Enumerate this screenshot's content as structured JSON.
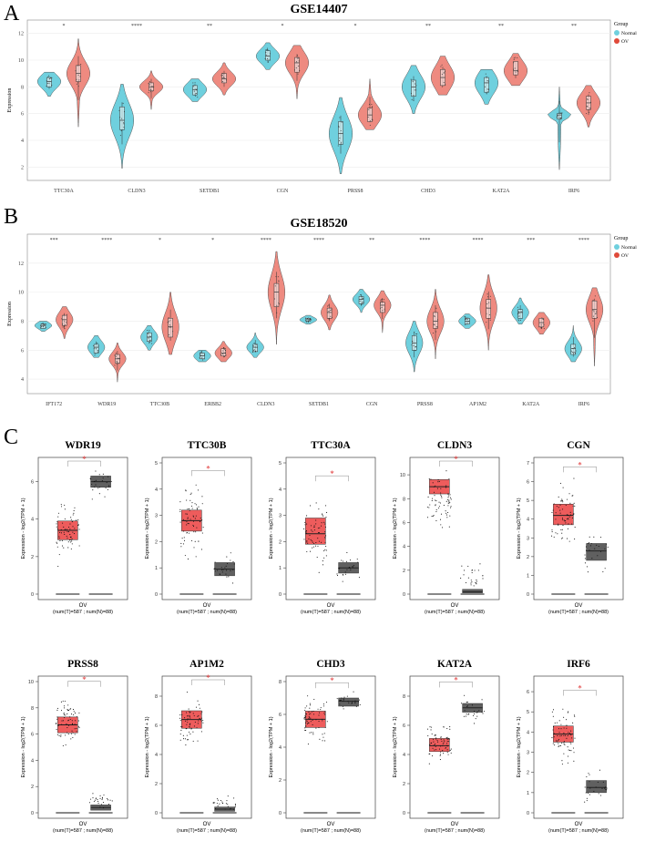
{
  "colors": {
    "normal": "#6fd0de",
    "ov": "#ee8a80",
    "box_tumor": "#ee5c5c",
    "box_normal": "#606060",
    "sig": "#e03030",
    "axis": "#333333"
  },
  "panels": {
    "A": "A",
    "B": "B",
    "C": "C"
  },
  "legend": {
    "title": "Group",
    "normal": "Normal",
    "ov": "OV"
  },
  "chart_data": [
    {
      "type": "violin",
      "panel": "A",
      "title": "GSE14407",
      "ylabel": "Expression",
      "ylim": [
        1,
        13
      ],
      "yticks": [
        2,
        4,
        6,
        8,
        10,
        12
      ],
      "categories": [
        "TTC30A",
        "CLDN3",
        "SETDB1",
        "CGN",
        "PRSS8",
        "CHD3",
        "KAT2A",
        "IRF6"
      ],
      "significance": [
        "*",
        "****",
        "**",
        "*",
        "*",
        "**",
        "**",
        "**"
      ],
      "series": [
        {
          "name": "Normal",
          "medians": [
            8.4,
            5.5,
            7.8,
            10.3,
            4.5,
            8.0,
            8.3,
            5.9
          ],
          "q1": [
            8.0,
            4.8,
            7.4,
            10.0,
            3.7,
            7.3,
            7.6,
            5.6
          ],
          "q3": [
            8.7,
            6.5,
            8.1,
            10.7,
            5.4,
            8.5,
            8.7,
            6.0
          ],
          "min": [
            7.3,
            1.9,
            6.9,
            9.3,
            1.5,
            6.0,
            6.7,
            1.8
          ],
          "max": [
            9.1,
            8.2,
            8.6,
            11.3,
            7.2,
            9.6,
            9.3,
            8.0
          ]
        },
        {
          "name": "OV",
          "medians": [
            9.0,
            8.0,
            8.6,
            9.8,
            5.9,
            8.7,
            9.2,
            6.8
          ],
          "q1": [
            8.4,
            7.7,
            8.3,
            9.1,
            5.4,
            8.1,
            8.9,
            6.3
          ],
          "q3": [
            9.6,
            8.3,
            9.0,
            10.2,
            6.4,
            9.3,
            9.9,
            7.3
          ],
          "min": [
            5.0,
            6.3,
            7.4,
            7.1,
            4.8,
            7.4,
            8.1,
            5.0
          ],
          "max": [
            11.6,
            9.2,
            9.8,
            11.1,
            8.6,
            10.3,
            10.5,
            8.1
          ]
        }
      ]
    },
    {
      "type": "violin",
      "panel": "B",
      "title": "GSE18520",
      "ylabel": "Expression",
      "ylim": [
        3,
        14
      ],
      "yticks": [
        4,
        6,
        8,
        10,
        12
      ],
      "categories": [
        "IFT172",
        "WDR19",
        "TTC30B",
        "ERBB2",
        "CLDN3",
        "SETDB1",
        "CGN",
        "PRSS8",
        "AP1M2",
        "KAT2A",
        "IRF6"
      ],
      "significance": [
        "***",
        "****",
        "*",
        "*",
        "****",
        "****",
        "**",
        "****",
        "****",
        "***",
        "****"
      ],
      "series": [
        {
          "name": "Normal",
          "medians": [
            7.7,
            6.2,
            6.9,
            5.6,
            6.2,
            8.1,
            9.5,
            6.5,
            8.0,
            8.6,
            6.1
          ],
          "q1": [
            7.5,
            5.8,
            6.6,
            5.4,
            5.9,
            8.0,
            9.2,
            6.0,
            7.8,
            8.2,
            5.7
          ],
          "q3": [
            7.8,
            6.4,
            7.2,
            5.8,
            6.4,
            8.2,
            9.7,
            7.0,
            8.2,
            8.8,
            6.4
          ],
          "min": [
            7.3,
            5.5,
            6.0,
            5.2,
            5.5,
            7.8,
            8.6,
            4.5,
            7.5,
            7.8,
            5.2
          ],
          "max": [
            8.0,
            7.0,
            7.7,
            6.0,
            7.2,
            8.4,
            10.2,
            8.0,
            8.5,
            9.6,
            7.7
          ]
        },
        {
          "name": "OV",
          "medians": [
            8.1,
            5.4,
            7.6,
            5.8,
            10.0,
            8.6,
            9.1,
            8.0,
            8.9,
            7.9,
            8.8
          ],
          "q1": [
            7.7,
            5.1,
            6.9,
            5.6,
            9.0,
            8.2,
            8.6,
            7.5,
            8.2,
            7.6,
            8.2
          ],
          "q3": [
            8.4,
            5.7,
            8.2,
            6.1,
            10.6,
            8.9,
            9.3,
            8.6,
            9.5,
            8.2,
            9.4
          ],
          "min": [
            6.8,
            3.8,
            5.7,
            5.2,
            6.4,
            7.4,
            7.2,
            5.4,
            6.0,
            7.1,
            4.9
          ],
          "max": [
            9.0,
            6.5,
            10.0,
            6.6,
            12.8,
            9.8,
            10.1,
            10.2,
            11.2,
            8.6,
            10.3
          ]
        }
      ]
    },
    {
      "type": "boxplot",
      "panel": "C",
      "ylabel": "Expression - log2(TPM + 1)",
      "xlabel": "OV",
      "subtitle": "(num(T)=587 ; num(N)=88)",
      "significance": "*",
      "plots": [
        {
          "gene": "WDR19",
          "ymax": 7,
          "yticks": [
            0,
            2,
            4,
            6
          ],
          "tumor": [
            2.9,
            3.4,
            3.9,
            1.3,
            5.5
          ],
          "normal": [
            5.7,
            6.0,
            6.3,
            4.8,
            7.1
          ]
        },
        {
          "gene": "TTC30B",
          "ymax": 5,
          "yticks": [
            0,
            1,
            2,
            3,
            4,
            5
          ],
          "tumor": [
            2.4,
            2.8,
            3.2,
            1.1,
            4.5
          ],
          "normal": [
            0.7,
            0.95,
            1.2,
            0.2,
            1.7
          ]
        },
        {
          "gene": "TTC30A",
          "ymax": 5,
          "yticks": [
            0,
            1,
            2,
            3,
            4,
            5
          ],
          "tumor": [
            1.9,
            2.3,
            2.9,
            0.5,
            4.3
          ],
          "normal": [
            0.8,
            1.0,
            1.2,
            0.4,
            1.7
          ]
        },
        {
          "gene": "CLDN3",
          "ymax": 11,
          "yticks": [
            0,
            2,
            4,
            6,
            8,
            10
          ],
          "tumor": [
            8.4,
            9.0,
            9.6,
            4.5,
            10.8
          ],
          "normal": [
            0.1,
            0.2,
            0.4,
            0.0,
            3.0
          ]
        },
        {
          "gene": "CGN",
          "ymax": 7,
          "yticks": [
            0,
            1,
            2,
            3,
            4,
            5,
            6,
            7
          ],
          "tumor": [
            3.7,
            4.2,
            4.8,
            1.9,
            6.5
          ],
          "normal": [
            1.8,
            2.3,
            2.7,
            0.6,
            3.9
          ]
        },
        {
          "gene": "PRSS8",
          "ymax": 10,
          "yticks": [
            0,
            2,
            4,
            6,
            8,
            10
          ],
          "tumor": [
            6.1,
            6.7,
            7.3,
            4.4,
            9.6
          ],
          "normal": [
            0.2,
            0.4,
            0.6,
            0.0,
            2.0
          ]
        },
        {
          "gene": "AP1M2",
          "ymax": 9,
          "yticks": [
            0,
            2,
            4,
            6,
            8
          ],
          "tumor": [
            5.8,
            6.4,
            7.0,
            3.5,
            8.8
          ],
          "normal": [
            0.1,
            0.25,
            0.4,
            0.0,
            1.3
          ]
        },
        {
          "gene": "CHD3",
          "ymax": 8,
          "yticks": [
            0,
            2,
            4,
            6,
            8
          ],
          "tumor": [
            5.2,
            5.7,
            6.2,
            3.5,
            7.6
          ],
          "normal": [
            6.5,
            6.8,
            7.0,
            6.1,
            7.6
          ]
        },
        {
          "gene": "KAT2A",
          "ymax": 9,
          "yticks": [
            0,
            2,
            4,
            6,
            8
          ],
          "tumor": [
            4.2,
            4.6,
            5.1,
            3.0,
            6.4
          ],
          "normal": [
            6.9,
            7.2,
            7.5,
            5.5,
            8.6
          ]
        },
        {
          "gene": "IRF6",
          "ymax": 6.5,
          "yticks": [
            0,
            1,
            2,
            3,
            4,
            5,
            6
          ],
          "tumor": [
            3.5,
            3.9,
            4.3,
            1.8,
            5.8
          ],
          "normal": [
            1.0,
            1.25,
            1.6,
            0.3,
            2.3
          ]
        }
      ]
    }
  ]
}
